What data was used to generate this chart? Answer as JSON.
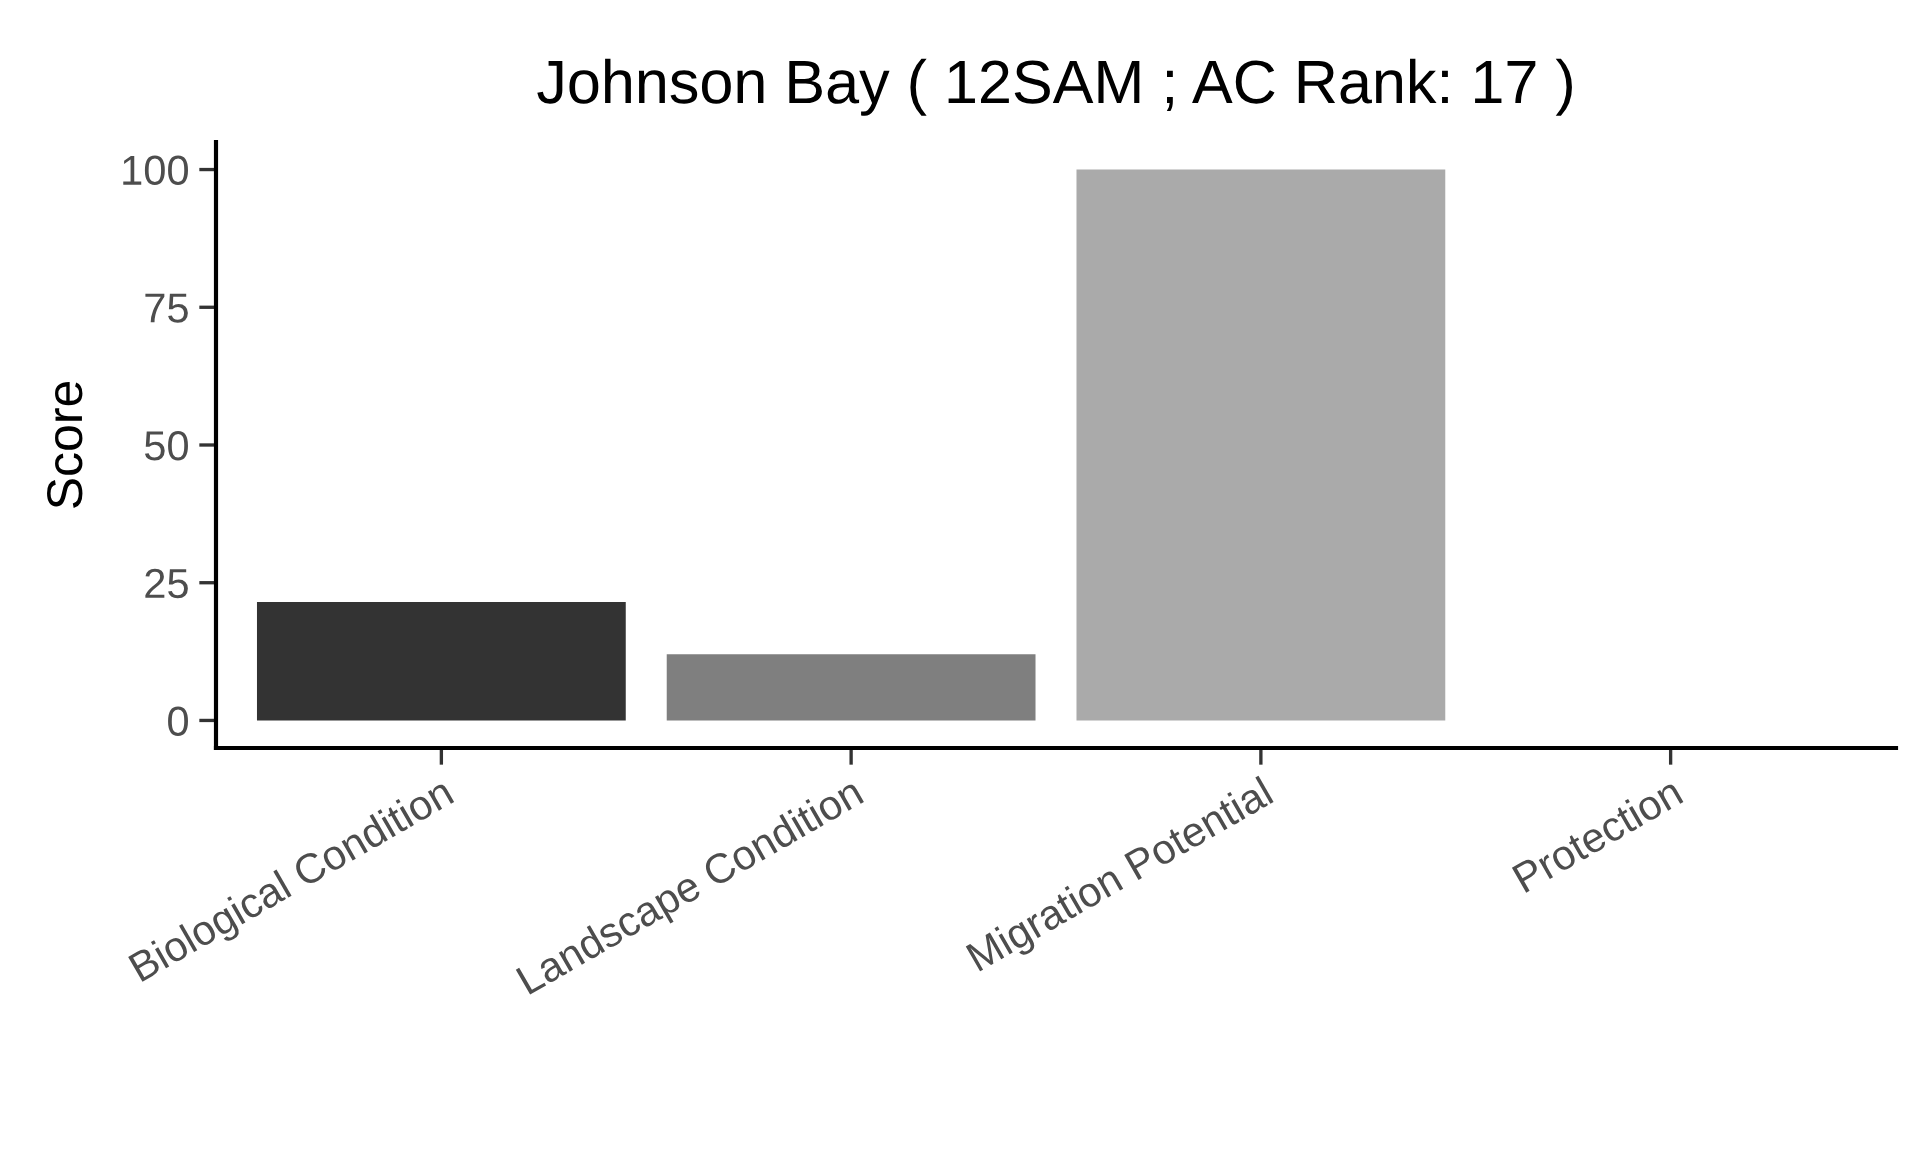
{
  "chart_data": {
    "type": "bar",
    "title": "Johnson Bay ( 12SAM ; AC Rank: 17 )",
    "ylabel": "Score",
    "categories": [
      "Biological Condition",
      "Landscape Condition",
      "Migration Potential",
      "Protection"
    ],
    "values": [
      21.5,
      12,
      100,
      0
    ],
    "colors": [
      "#333333",
      "#7f7f7f",
      "#aaaaaa",
      "#d3d3d3"
    ],
    "ylim": [
      -5,
      105
    ],
    "yticks": [
      0,
      25,
      50,
      75,
      100
    ],
    "grid": false
  }
}
